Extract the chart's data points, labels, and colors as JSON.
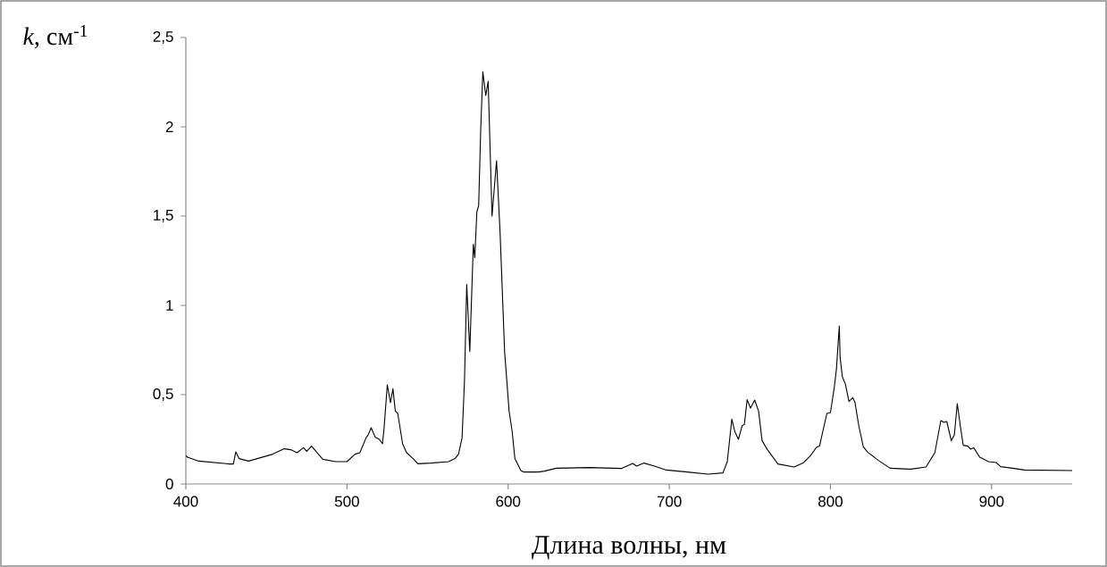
{
  "chart_data": {
    "type": "line",
    "xlabel": "Длина волны, нм",
    "ylabel": "*k*, см$^{-1}$",
    "xlim": [
      400,
      950
    ],
    "ylim": [
      0,
      2.5
    ],
    "xticks": [
      400,
      500,
      600,
      700,
      800,
      900
    ],
    "yticks": [
      0,
      {
        "value": 0.5,
        "label": "0,5"
      },
      1,
      {
        "value": 1.5,
        "label": "1,5"
      },
      2,
      {
        "value": 2.5,
        "label": "2,5"
      }
    ],
    "marker": "none",
    "line_style": "solid",
    "series": [
      {
        "color": "#000000",
        "x": [
          400,
          401,
          408,
          427,
          429.5,
          431,
          433,
          439,
          454,
          461,
          465,
          469,
          473,
          475,
          478,
          485,
          493,
          500,
          505,
          508,
          512,
          513,
          515,
          517.5,
          520,
          522,
          523,
          525,
          527,
          528.5,
          530,
          531.5,
          534.5,
          537,
          541,
          544,
          552,
          563,
          567,
          569.2,
          571.4,
          572.9,
          574.3,
          576.2,
          578.4,
          579.3,
          580.6,
          581.7,
          583,
          584.3,
          586.1,
          587.6,
          590,
          592.8,
          595,
          597.8,
          600.6,
          602.4,
          604.2,
          607.9,
          609.6,
          618.8,
          622.5,
          629.9,
          650.2,
          670.5,
          677.3,
          679.7,
          684.3,
          690.8,
          698.2,
          711.1,
          724,
          733.3,
          736,
          738.8,
          740.7,
          742.9,
          745.3,
          746.6,
          748.3,
          750.4,
          753,
          755.4,
          757.6,
          760.9,
          767.4,
          777.5,
          783,
          787.6,
          791.3,
          793.2,
          797.8,
          800,
          802.4,
          803.7,
          805.5,
          806,
          807.4,
          809.3,
          811.5,
          813.9,
          815.2,
          817.6,
          820.4,
          823.1,
          829.6,
          837,
          850,
          859.3,
          864.8,
          868.5,
          870.4,
          872.2,
          875,
          876.9,
          878.7,
          880.6,
          882.4,
          885.2,
          887,
          888.9,
          892.6,
          898.1,
          902.8,
          905.6,
          913,
          920.4,
          950
        ],
        "values": [
          0.158,
          0.15,
          0.128,
          0.112,
          0.112,
          0.18,
          0.142,
          0.128,
          0.167,
          0.197,
          0.192,
          0.175,
          0.203,
          0.183,
          0.212,
          0.138,
          0.125,
          0.125,
          0.167,
          0.175,
          0.262,
          0.272,
          0.315,
          0.262,
          0.25,
          0.225,
          0.31,
          0.555,
          0.455,
          0.533,
          0.408,
          0.395,
          0.225,
          0.175,
          0.142,
          0.113,
          0.117,
          0.125,
          0.142,
          0.167,
          0.258,
          0.575,
          1.117,
          0.742,
          1.342,
          1.267,
          1.525,
          1.558,
          1.99,
          2.308,
          2.175,
          2.255,
          1.5,
          1.81,
          1.408,
          0.742,
          0.408,
          0.3,
          0.142,
          0.075,
          0.067,
          0.067,
          0.072,
          0.088,
          0.092,
          0.087,
          0.115,
          0.1,
          0.117,
          0.1,
          0.078,
          0.067,
          0.055,
          0.062,
          0.125,
          0.363,
          0.292,
          0.25,
          0.328,
          0.333,
          0.472,
          0.425,
          0.47,
          0.408,
          0.242,
          0.192,
          0.112,
          0.095,
          0.117,
          0.158,
          0.205,
          0.212,
          0.395,
          0.4,
          0.542,
          0.642,
          0.885,
          0.708,
          0.6,
          0.558,
          0.462,
          0.483,
          0.458,
          0.325,
          0.208,
          0.178,
          0.133,
          0.088,
          0.083,
          0.095,
          0.175,
          0.355,
          0.345,
          0.35,
          0.242,
          0.275,
          0.45,
          0.325,
          0.217,
          0.212,
          0.195,
          0.203,
          0.15,
          0.125,
          0.12,
          0.097,
          0.088,
          0.078,
          0.075
        ]
      }
    ]
  }
}
